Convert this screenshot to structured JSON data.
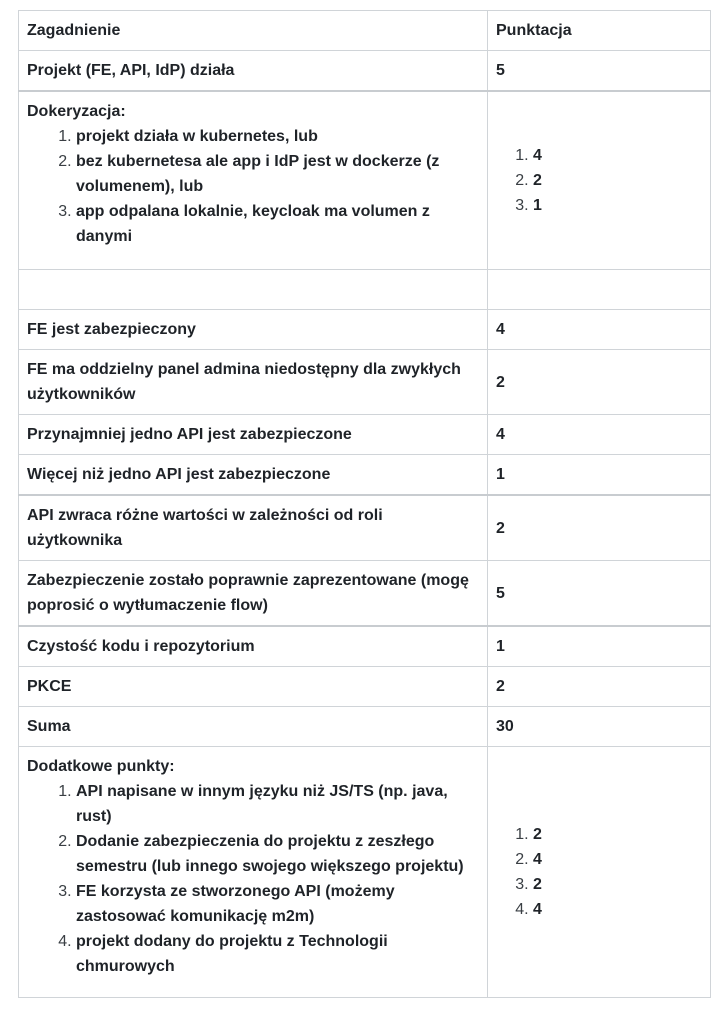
{
  "header": {
    "topic": "Zagadnienie",
    "score": "Punktacja"
  },
  "rows_top": [
    {
      "topic": "Projekt (FE, API, IdP) działa",
      "score": "5"
    }
  ],
  "dockerization": {
    "title": "Dokeryzacja:",
    "items": [
      "projekt działa w kubernetes, lub",
      "bez kubernetesa ale app i IdP jest w dockerze (z volumenem), lub",
      "app odpalana lokalnie, keycloak ma volumen z danymi"
    ],
    "scores": [
      "4",
      "2",
      "1"
    ]
  },
  "rows_mid": [
    {
      "topic": "FE jest zabezpieczony",
      "score": "4"
    },
    {
      "topic": "FE ma oddzielny panel admina niedostępny dla zwykłych użytkowników",
      "score": "2"
    },
    {
      "topic": "Przynajmniej jedno API jest zabezpieczone",
      "score": "4"
    },
    {
      "topic": "Więcej niż jedno API jest zabezpieczone",
      "score": "1"
    },
    {
      "topic": "API zwraca różne wartości w zależności od roli użytkownika",
      "score": "2"
    },
    {
      "topic": "Zabezpieczenie zostało poprawnie zaprezentowane (mogę poprosić o wytłumaczenie flow)",
      "score": "5"
    },
    {
      "topic": "Czystość kodu i repozytorium",
      "score": "1"
    },
    {
      "topic": "PKCE",
      "score": "2"
    },
    {
      "topic": "Suma",
      "score": "30"
    }
  ],
  "extra": {
    "title": "Dodatkowe punkty:",
    "items": [
      "API napisane w innym języku niż JS/TS (np. java, rust)",
      "Dodanie zabezpieczenia do projektu z zeszłego semestru (lub innego swojego większego projektu)",
      "FE korzysta ze stworzonego API (możemy zastosować komunikację m2m)",
      "projekt dodany do projektu z Technologii chmurowych"
    ],
    "scores": [
      "2",
      "4",
      "2",
      "4"
    ]
  }
}
